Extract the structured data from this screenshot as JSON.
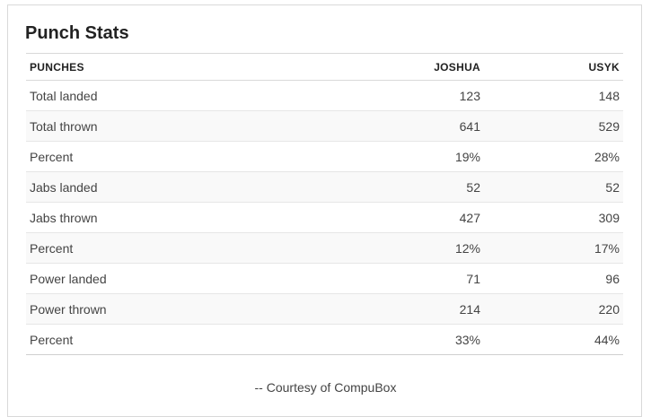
{
  "card": {
    "title": "Punch Stats",
    "credit": "-- Courtesy of CompuBox"
  },
  "table": {
    "headers": [
      "PUNCHES",
      "JOSHUA",
      "USYK"
    ],
    "rows": [
      {
        "label": "Total landed",
        "joshua": "123",
        "usyk": "148"
      },
      {
        "label": "Total thrown",
        "joshua": "641",
        "usyk": "529"
      },
      {
        "label": "Percent",
        "joshua": "19%",
        "usyk": "28%"
      },
      {
        "label": "Jabs landed",
        "joshua": "52",
        "usyk": "52"
      },
      {
        "label": "Jabs thrown",
        "joshua": "427",
        "usyk": "309"
      },
      {
        "label": "Percent",
        "joshua": "12%",
        "usyk": "17%"
      },
      {
        "label": "Power landed",
        "joshua": "71",
        "usyk": "96"
      },
      {
        "label": "Power thrown",
        "joshua": "214",
        "usyk": "220"
      },
      {
        "label": "Percent",
        "joshua": "33%",
        "usyk": "44%"
      }
    ]
  }
}
